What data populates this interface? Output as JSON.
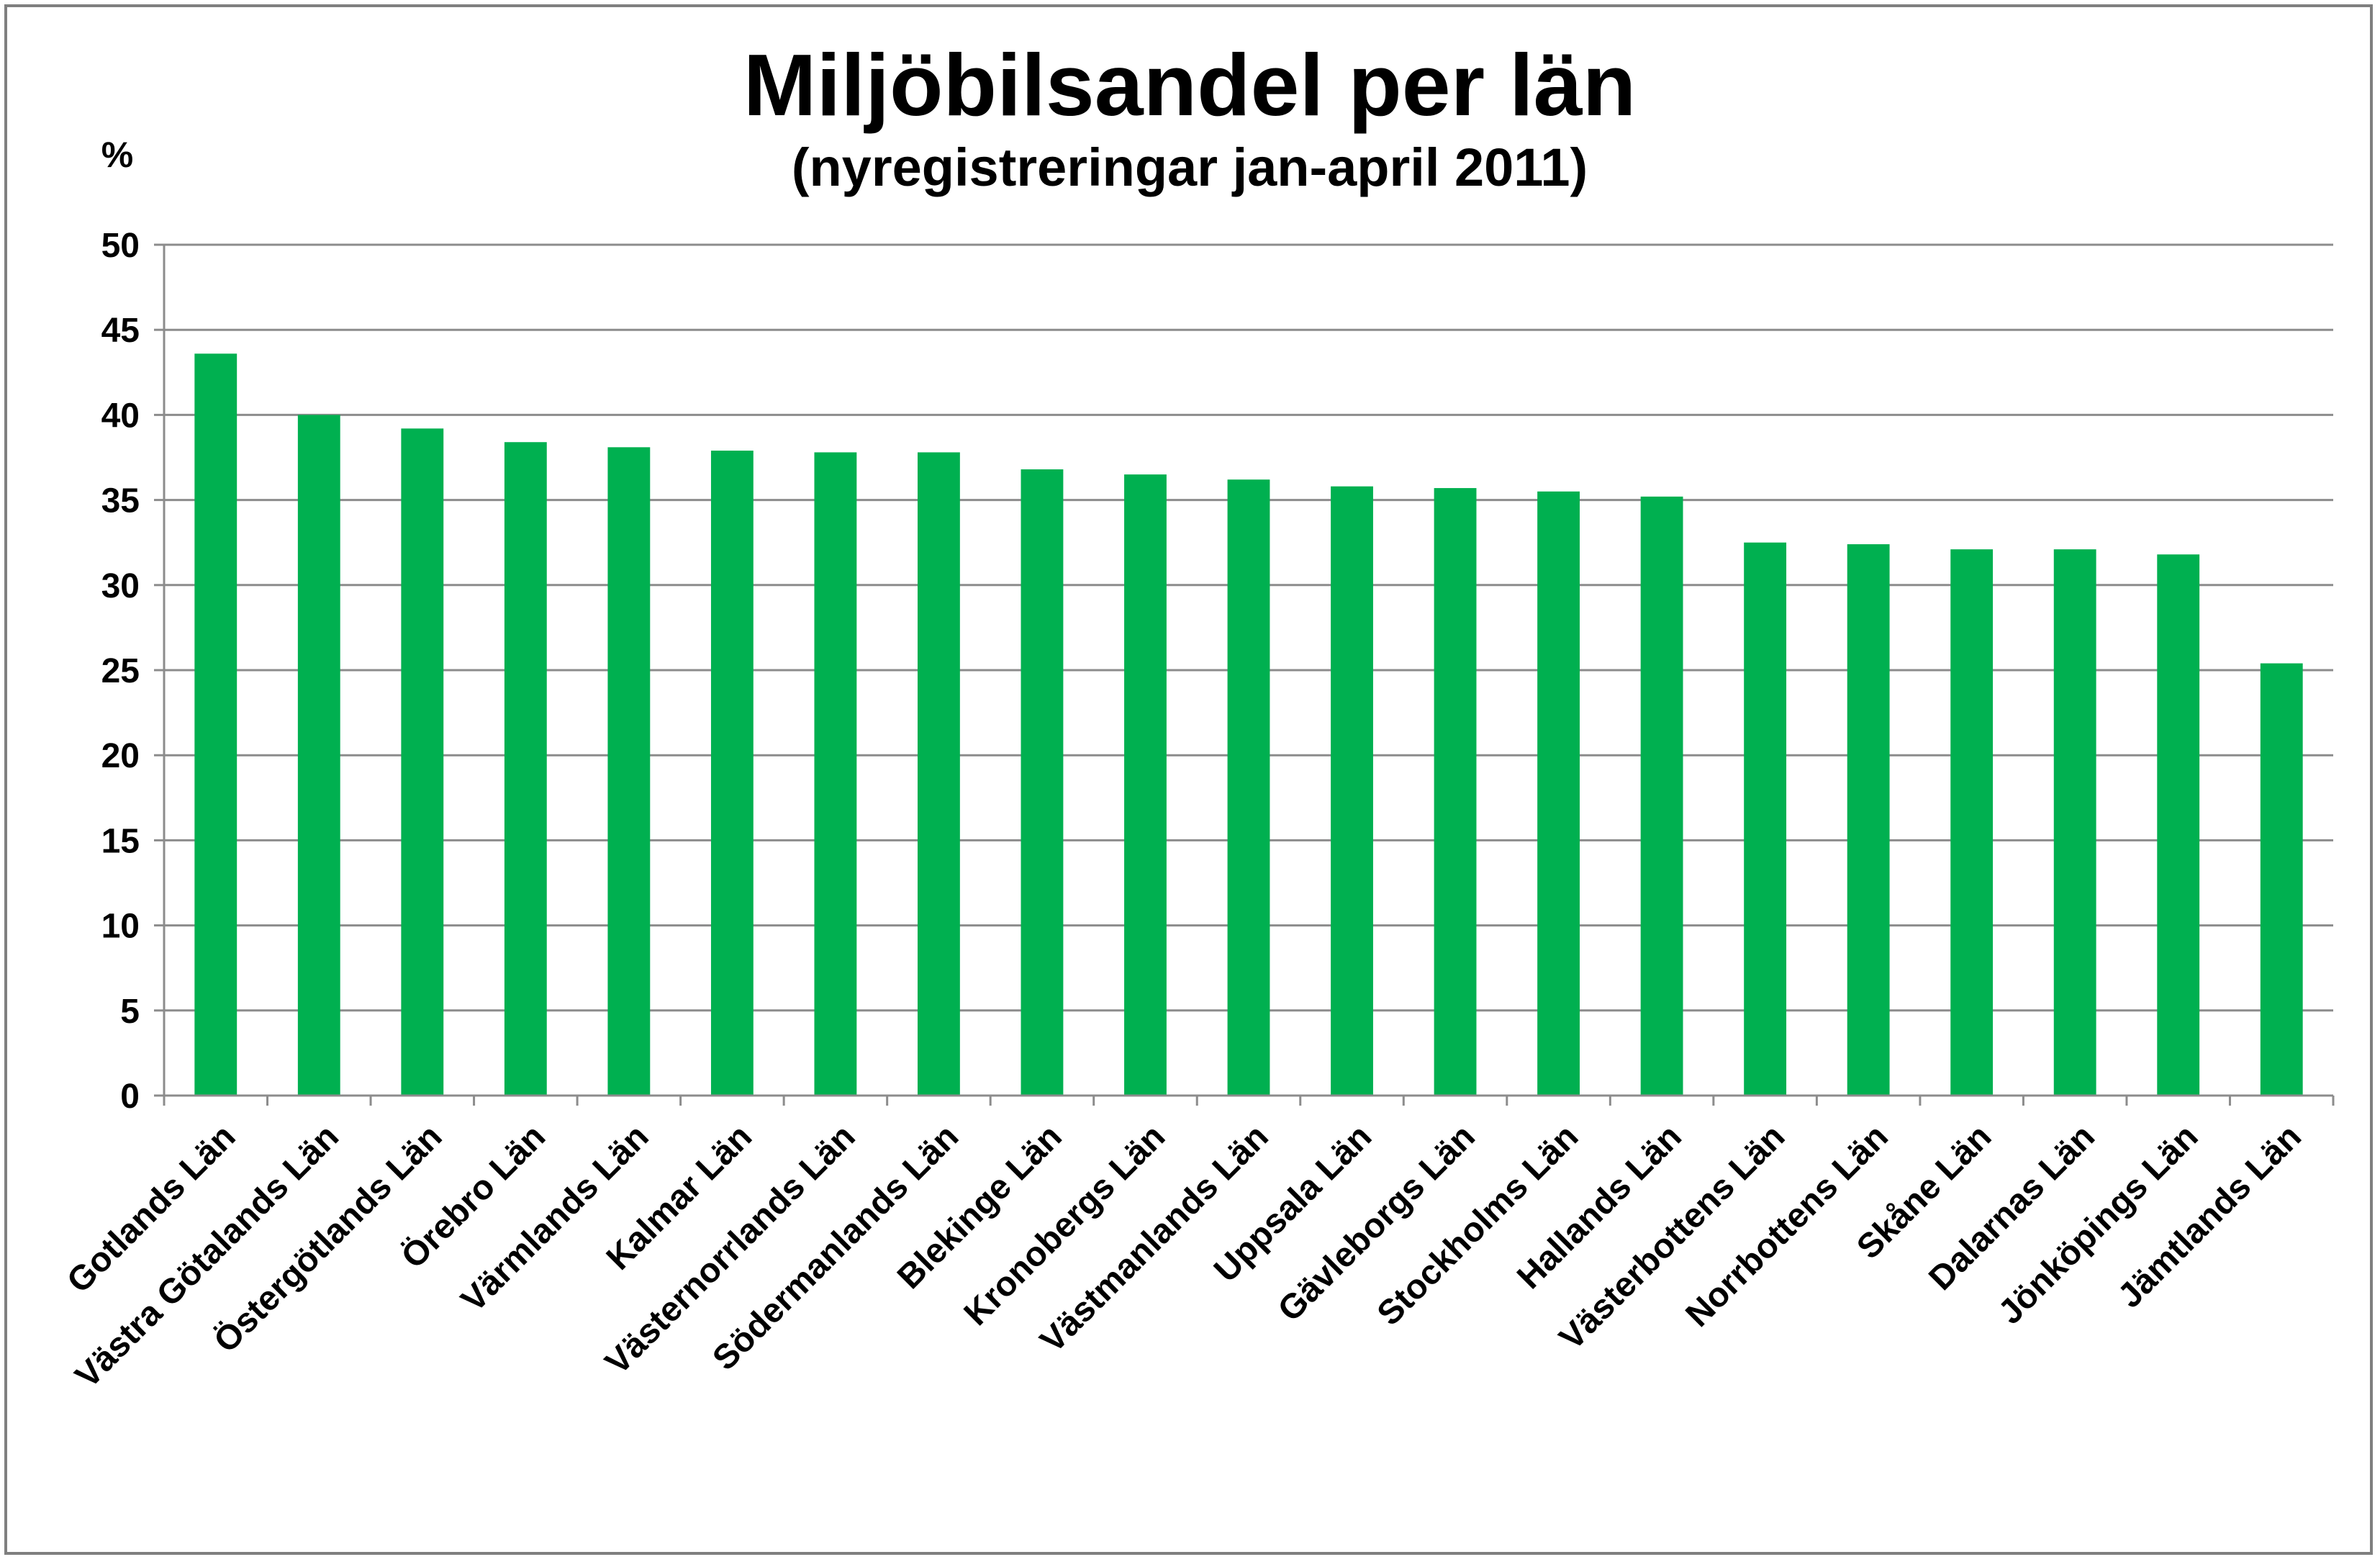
{
  "chart_data": {
    "type": "bar",
    "title": "Miljöbilsandel per län",
    "subtitle": "(nyregistreringar jan-april 2011)",
    "ylabel": "%",
    "xlabel": "",
    "ylim": [
      0,
      50
    ],
    "yticks": [
      0,
      5,
      10,
      15,
      20,
      25,
      30,
      35,
      40,
      45,
      50
    ],
    "grid": true,
    "legend": "none",
    "bar_color": "#00b050",
    "categories": [
      "Gotlands Län",
      "Västra Götalands Län",
      "Östergötlands Län",
      "Örebro Län",
      "Värmlands Län",
      "Kalmar Län",
      "Västernorrlands Län",
      "Södermanlands Län",
      "Blekinge Län",
      "Kronobergs Län",
      "Västmanlands Län",
      "Uppsala Län",
      "Gävleborgs Län",
      "Stockholms Län",
      "Hallands Län",
      "Västerbottens Län",
      "Norrbottens Län",
      "Skåne Län",
      "Dalarnas Län",
      "Jönköpings Län",
      "Jämtlands Län"
    ],
    "values": [
      43.6,
      40.0,
      39.2,
      38.4,
      38.1,
      37.9,
      37.8,
      37.8,
      36.8,
      36.5,
      36.2,
      35.8,
      35.7,
      35.5,
      35.2,
      32.5,
      32.4,
      32.1,
      32.1,
      31.8,
      25.4
    ]
  }
}
